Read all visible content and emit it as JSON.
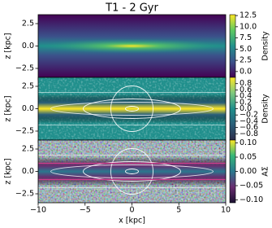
{
  "chart_data": [
    {
      "type": "heatmap",
      "title": "T1 - 2 Gyr",
      "ylabel": "z [kpc]",
      "xlim": [
        -10,
        10
      ],
      "ylim": [
        -3.5,
        3.5
      ],
      "yticks": [
        {
          "value": 2.5,
          "label": "2.5"
        },
        {
          "value": 0,
          "label": "0.0"
        },
        {
          "value": -2.5,
          "label": "−2.5"
        }
      ],
      "colorbar_label": "Density",
      "clim": [
        -1.3,
        12.7
      ],
      "cticks": [
        {
          "value": 0,
          "label": "0.0"
        },
        {
          "value": 2.5,
          "label": "2.5"
        },
        {
          "value": 5,
          "label": "5.0"
        },
        {
          "value": 7.5,
          "label": "7.5"
        },
        {
          "value": 10,
          "label": "10.0"
        },
        {
          "value": 12.5,
          "label": "12.5"
        }
      ],
      "colormap": [
        "#440154",
        "#3b528b",
        "#21918c",
        "#5ec962",
        "#fde725"
      ]
    },
    {
      "type": "heatmap",
      "ylabel": "z [kpc]",
      "xlim": [
        -10,
        10
      ],
      "ylim": [
        -3.5,
        3.5
      ],
      "yticks": [
        {
          "value": 2.5,
          "label": "2.5"
        },
        {
          "value": 0,
          "label": "0.0"
        },
        {
          "value": -2.5,
          "label": "−2.5"
        }
      ],
      "colorbar_label": "Density",
      "clim": [
        -1,
        1
      ],
      "cticks": [
        {
          "value": -0.8,
          "label": "−0.8"
        },
        {
          "value": -0.6,
          "label": "−0.6"
        },
        {
          "value": -0.4,
          "label": "−0.4"
        },
        {
          "value": -0.2,
          "label": "−0.2"
        },
        {
          "value": 0,
          "label": "0.0"
        },
        0.2,
        0.4,
        0.6,
        0.8
      ],
      "colormap": [
        "#2c2c4a",
        "#2a5f7a",
        "#208f8c",
        "#7fc97f",
        "#fde725"
      ]
    },
    {
      "type": "heatmap",
      "ylabel": "z [kpc]",
      "xlabel": "x [kpc]",
      "xlim": [
        -10,
        10
      ],
      "ylim": [
        -3.5,
        3.5
      ],
      "xticks": [
        {
          "value": -10,
          "label": "−10"
        },
        {
          "value": -5,
          "label": "−5"
        },
        0,
        5,
        10
      ],
      "yticks": [
        {
          "value": 2.5,
          "label": "2.5"
        },
        {
          "value": 0,
          "label": "0.0"
        },
        {
          "value": -2.5,
          "label": "−2.5"
        }
      ],
      "colorbar_label": "AΣ",
      "clim": [
        -0.11,
        0.11
      ],
      "cticks": [
        {
          "value": -0.1,
          "label": "−0.10"
        },
        {
          "value": -0.05,
          "label": "−0.05"
        },
        {
          "value": 0,
          "label": "0.00"
        },
        {
          "value": 0.05,
          "label": "0.05"
        },
        {
          "value": 0.1,
          "label": "0.10"
        }
      ],
      "colormap": [
        "#1a1030",
        "#6a2c70",
        "#2a788e",
        "#35b779",
        "#fde725"
      ]
    }
  ]
}
